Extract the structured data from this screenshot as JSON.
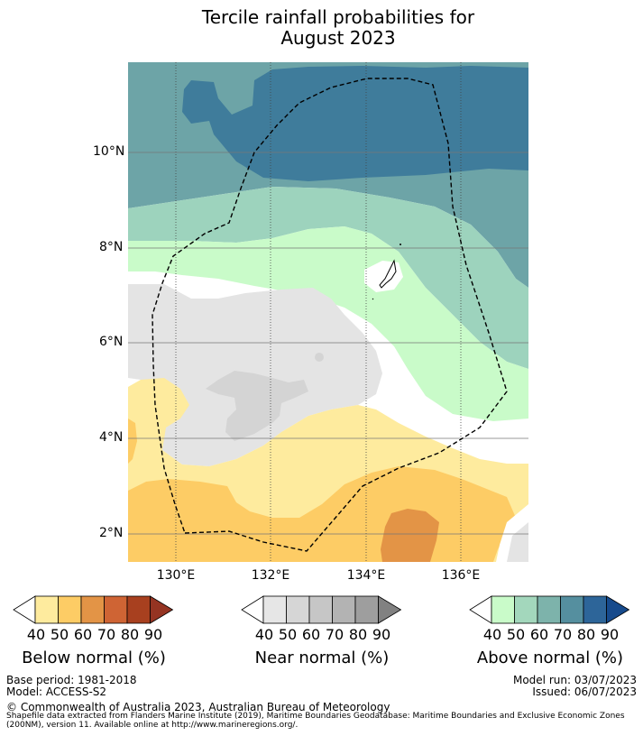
{
  "title": {
    "line1": "Tercile rainfall probabilities for",
    "line2": "August 2023"
  },
  "map": {
    "lat_ticks": [
      "10°N",
      "8°N",
      "6°N",
      "4°N",
      "2°N"
    ],
    "lon_ticks": [
      "130°E",
      "132°E",
      "134°E",
      "136°E"
    ],
    "colors": {
      "above_40": "#c9fbc9",
      "above_50": "#9dd3bd",
      "above_60": "#6da4a7",
      "above_70": "#3f7c9b",
      "near_50": "#e4e4e4",
      "near_60": "#d4d4d4",
      "below_40": "#feeb9e",
      "below_50": "#fdcc65",
      "below_60": "#e39446"
    }
  },
  "legends": [
    {
      "label": "Below normal (%)",
      "ticks": [
        "40",
        "50",
        "60",
        "70",
        "80",
        "90"
      ],
      "colors": [
        "#ffffff",
        "#feeb9e",
        "#fdcc65",
        "#e39446",
        "#cf6434",
        "#a8401f",
        "#953422"
      ]
    },
    {
      "label": "Near normal (%)",
      "ticks": [
        "40",
        "50",
        "60",
        "70",
        "80",
        "90"
      ],
      "colors": [
        "#ffffff",
        "#e6e6e6",
        "#d6d6d6",
        "#c6c6c6",
        "#b3b3b3",
        "#9e9e9e",
        "#818181"
      ]
    },
    {
      "label": "Above normal (%)",
      "ticks": [
        "40",
        "50",
        "60",
        "70",
        "80",
        "90"
      ],
      "colors": [
        "#ffffff",
        "#c9fbc9",
        "#a3d7bc",
        "#7db3ab",
        "#558f9f",
        "#2d6599",
        "#164a8c"
      ]
    }
  ],
  "meta": {
    "base_period": "Base period: 1981-2018",
    "model": "Model: ACCESS-S2",
    "model_run": "Model run: 03/07/2023",
    "issued": "Issued: 06/07/2023",
    "copyright": "© Commonwealth of Australia 2023, Australian Bureau of Meteorology",
    "shapefile": "Shapefile data extracted from Flanders Marine Institute (2019), Maritime Boundaries Geodatabase: Maritime Boundaries and Exclusive Economic Zones (200NM), version 11. Available online at http://www.marineregions.org/."
  }
}
